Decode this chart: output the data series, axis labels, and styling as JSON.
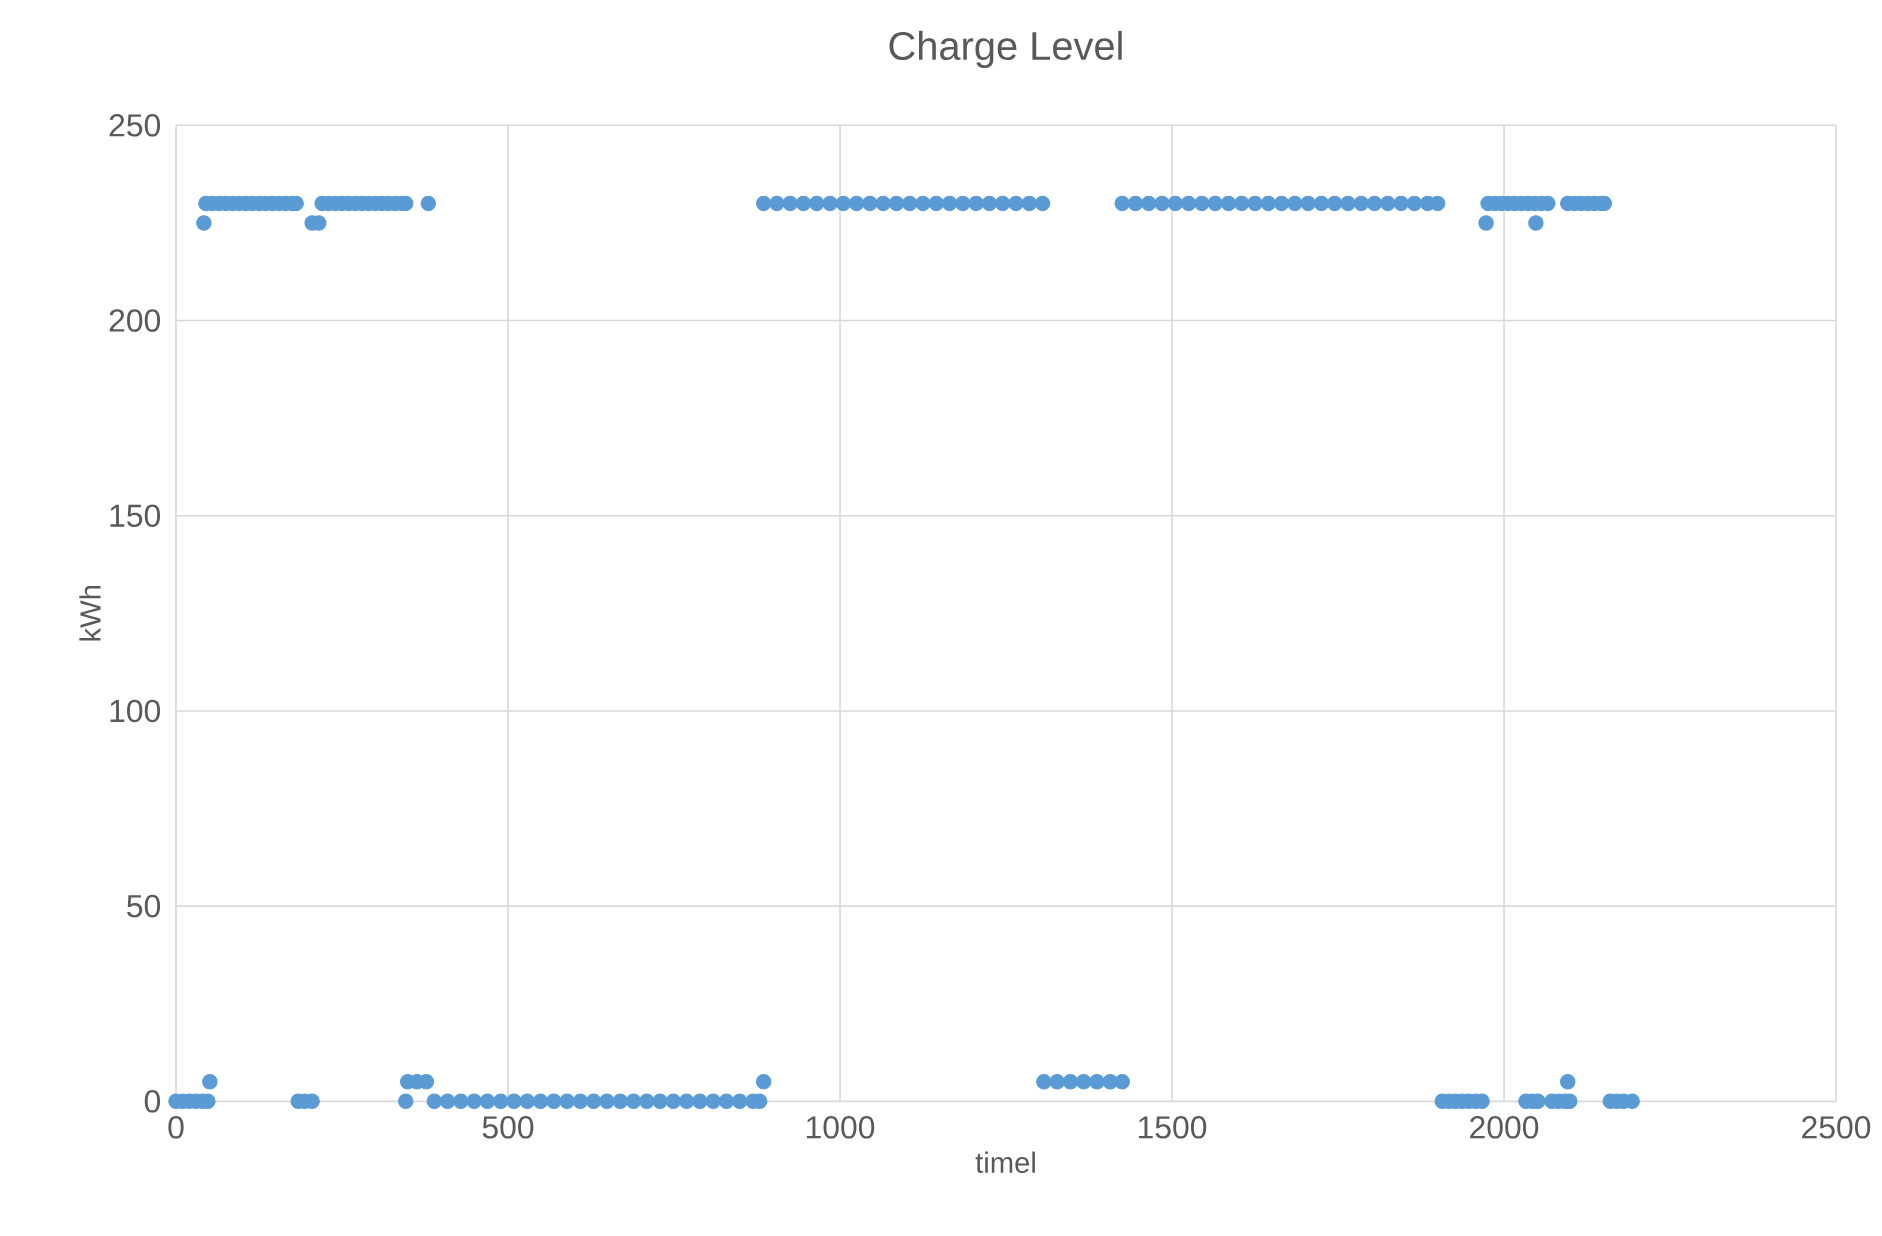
{
  "chart_data": {
    "type": "scatter",
    "title": "Charge Level",
    "xlabel": "timel",
    "ylabel": "kWh",
    "xlim": [
      0,
      2500
    ],
    "xticks": [
      0,
      500,
      1000,
      1500,
      2000,
      2500
    ],
    "ylim": [
      0,
      250
    ],
    "yticks": [
      0,
      50,
      100,
      150,
      200,
      250
    ],
    "grid": true,
    "marker": "circle",
    "series": [
      {
        "color": "#5b9bd5",
        "x": [
          45,
          55,
          65,
          75,
          85,
          95,
          105,
          115,
          125,
          135,
          145,
          155,
          165,
          175,
          181,
          220,
          230,
          240,
          250,
          260,
          270,
          280,
          290,
          300,
          310,
          320,
          330,
          340,
          346,
          380,
          885,
          905,
          925,
          945,
          965,
          985,
          1005,
          1025,
          1045,
          1065,
          1085,
          1105,
          1125,
          1145,
          1165,
          1185,
          1205,
          1225,
          1245,
          1265,
          1285,
          1305,
          1425,
          1445,
          1465,
          1485,
          1505,
          1525,
          1545,
          1565,
          1585,
          1605,
          1625,
          1645,
          1665,
          1685,
          1705,
          1725,
          1745,
          1765,
          1785,
          1805,
          1825,
          1845,
          1865,
          1885,
          1900,
          1976,
          1986,
          1996,
          2006,
          2016,
          2026,
          2036,
          2046,
          2056,
          2066,
          2096,
          2106,
          2116,
          2126,
          2136,
          2146,
          2151
        ],
        "values": [
          230,
          230,
          230,
          230,
          230,
          230,
          230,
          230,
          230,
          230,
          230,
          230,
          230,
          230,
          230,
          230,
          230,
          230,
          230,
          230,
          230,
          230,
          230,
          230,
          230,
          230,
          230,
          230,
          230,
          230,
          230,
          230,
          230,
          230,
          230,
          230,
          230,
          230,
          230,
          230,
          230,
          230,
          230,
          230,
          230,
          230,
          230,
          230,
          230,
          230,
          230,
          230,
          230,
          230,
          230,
          230,
          230,
          230,
          230,
          230,
          230,
          230,
          230,
          230,
          230,
          230,
          230,
          230,
          230,
          230,
          230,
          230,
          230,
          230,
          230,
          230,
          230,
          230,
          230,
          230,
          230,
          230,
          230,
          230,
          230,
          230,
          230,
          230,
          230,
          230,
          230,
          230,
          230,
          230
        ]
      },
      {
        "color": "#5b9bd5",
        "x": [
          42,
          205,
          215,
          1973,
          2048
        ],
        "values": [
          225,
          225,
          225,
          225,
          225
        ]
      },
      {
        "color": "#5b9bd5",
        "x": [
          0,
          10,
          20,
          30,
          40,
          48,
          184,
          194,
          205,
          346,
          389,
          409,
          429,
          449,
          469,
          489,
          509,
          529,
          549,
          569,
          589,
          609,
          629,
          649,
          669,
          689,
          709,
          729,
          749,
          769,
          789,
          809,
          829,
          849,
          869,
          879,
          1907,
          1917,
          1927,
          1937,
          1947,
          1957,
          1967,
          2033,
          2043,
          2051,
          2072,
          2082,
          2092,
          2099,
          2160,
          2170,
          2180,
          2193
        ],
        "values": [
          0,
          0,
          0,
          0,
          0,
          0,
          0,
          0,
          0,
          0,
          0,
          0,
          0,
          0,
          0,
          0,
          0,
          0,
          0,
          0,
          0,
          0,
          0,
          0,
          0,
          0,
          0,
          0,
          0,
          0,
          0,
          0,
          0,
          0,
          0,
          0,
          0,
          0,
          0,
          0,
          0,
          0,
          0,
          0,
          0,
          0,
          0,
          0,
          0,
          0,
          0,
          0,
          0,
          0
        ]
      },
      {
        "color": "#5b9bd5",
        "x": [
          51,
          349,
          363,
          377,
          885,
          1307,
          1327,
          1347,
          1367,
          1387,
          1407,
          1425,
          2096
        ],
        "values": [
          5,
          5,
          5,
          5,
          5,
          5,
          5,
          5,
          5,
          5,
          5,
          5,
          5
        ]
      }
    ]
  }
}
